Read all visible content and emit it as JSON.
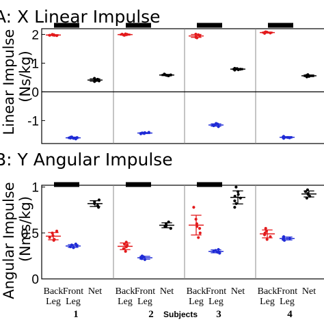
{
  "panel_a": {
    "title": "A: X Linear Impulse",
    "ylabel_outer": "Linear Impulse",
    "ylabel_inner": "(Ns/kg)"
  },
  "panel_b": {
    "title": "B: Y Angular Impulse",
    "ylabel_outer": "Angular Impulse",
    "ylabel_inner": "(Nms/kg)"
  },
  "xaxis": {
    "categories": [
      "Back Leg",
      "Front Leg",
      "Net"
    ],
    "subjects": [
      "1",
      "2",
      "3",
      "4"
    ],
    "subjects_label": "Subjects"
  },
  "colors": {
    "back_leg": "#e31a1c",
    "front_leg": "#1f2bd6",
    "net": "#000000"
  },
  "chart_data": [
    {
      "type": "scatter",
      "title": "A: X Linear Impulse",
      "ylabel": "Linear Impulse (Ns/kg)",
      "ylim": [
        -1.8,
        2.2
      ],
      "yticks": [
        -1,
        0,
        1,
        2
      ],
      "zero_line": true,
      "grid": false,
      "groups": [
        {
          "subject": "1",
          "back_leg": [
            1.96,
            1.97,
            1.99,
            2.0,
            1.98,
            1.97
          ],
          "front_leg": [
            -1.61,
            -1.57,
            -1.62,
            -1.59,
            -1.64,
            -1.58
          ],
          "net": [
            0.38,
            0.44,
            0.36,
            0.42,
            0.47,
            0.4
          ]
        },
        {
          "subject": "2",
          "back_leg": [
            1.98,
            2.0,
            2.02,
            1.99,
            1.97,
            2.01
          ],
          "front_leg": [
            -1.44,
            -1.42,
            -1.46,
            -1.43,
            -1.45,
            -1.41
          ],
          "net": [
            0.56,
            0.6,
            0.58,
            0.62,
            0.57,
            0.59
          ]
        },
        {
          "subject": "3",
          "back_leg": [
            1.95,
            1.9,
            1.99,
            1.88,
            1.96,
            2.01
          ],
          "front_leg": [
            -1.18,
            -1.12,
            -1.21,
            -1.15,
            -1.1,
            -1.16
          ],
          "net": [
            0.76,
            0.8,
            0.82,
            0.79,
            0.77,
            0.81
          ]
        },
        {
          "subject": "4",
          "back_leg": [
            2.05,
            2.08,
            2.06,
            2.09,
            2.04,
            2.07
          ],
          "front_leg": [
            -1.56,
            -1.6,
            -1.58,
            -1.62,
            -1.55,
            -1.59
          ],
          "net": [
            0.52,
            0.58,
            0.55,
            0.6,
            0.54,
            0.57
          ]
        }
      ]
    },
    {
      "type": "scatter",
      "title": "B: Y Angular Impulse",
      "ylabel": "Angular Impulse (Nms/kg)",
      "ylim": [
        0,
        1.02
      ],
      "yticks": [
        0,
        0.5,
        1
      ],
      "grid": false,
      "groups": [
        {
          "subject": "1",
          "back_leg": [
            0.52,
            0.45,
            0.42,
            0.5,
            0.47,
            0.43
          ],
          "front_leg": [
            0.35,
            0.37,
            0.34,
            0.36,
            0.38,
            0.35
          ],
          "net": [
            0.86,
            0.8,
            0.84,
            0.78,
            0.82
          ]
        },
        {
          "subject": "2",
          "back_leg": [
            0.4,
            0.33,
            0.37,
            0.3,
            0.35,
            0.38
          ],
          "front_leg": [
            0.22,
            0.24,
            0.21,
            0.23,
            0.25
          ],
          "net": [
            0.6,
            0.55,
            0.62,
            0.57,
            0.58
          ]
        },
        {
          "subject": "3",
          "back_leg": [
            0.78,
            0.6,
            0.5,
            0.55,
            0.65,
            0.45,
            0.57
          ],
          "front_leg": [
            0.28,
            0.31,
            0.3,
            0.29,
            0.32
          ],
          "net": [
            1.0,
            0.95,
            0.9,
            0.78,
            0.82,
            0.85,
            0.88,
            0.92
          ]
        },
        {
          "subject": "4",
          "back_leg": [
            0.52,
            0.46,
            0.43,
            0.5,
            0.55,
            0.48
          ],
          "front_leg": [
            0.42,
            0.45,
            0.44,
            0.43,
            0.46
          ],
          "net": [
            0.95,
            0.9,
            0.88,
            0.92,
            0.97,
            0.93
          ]
        }
      ]
    }
  ]
}
